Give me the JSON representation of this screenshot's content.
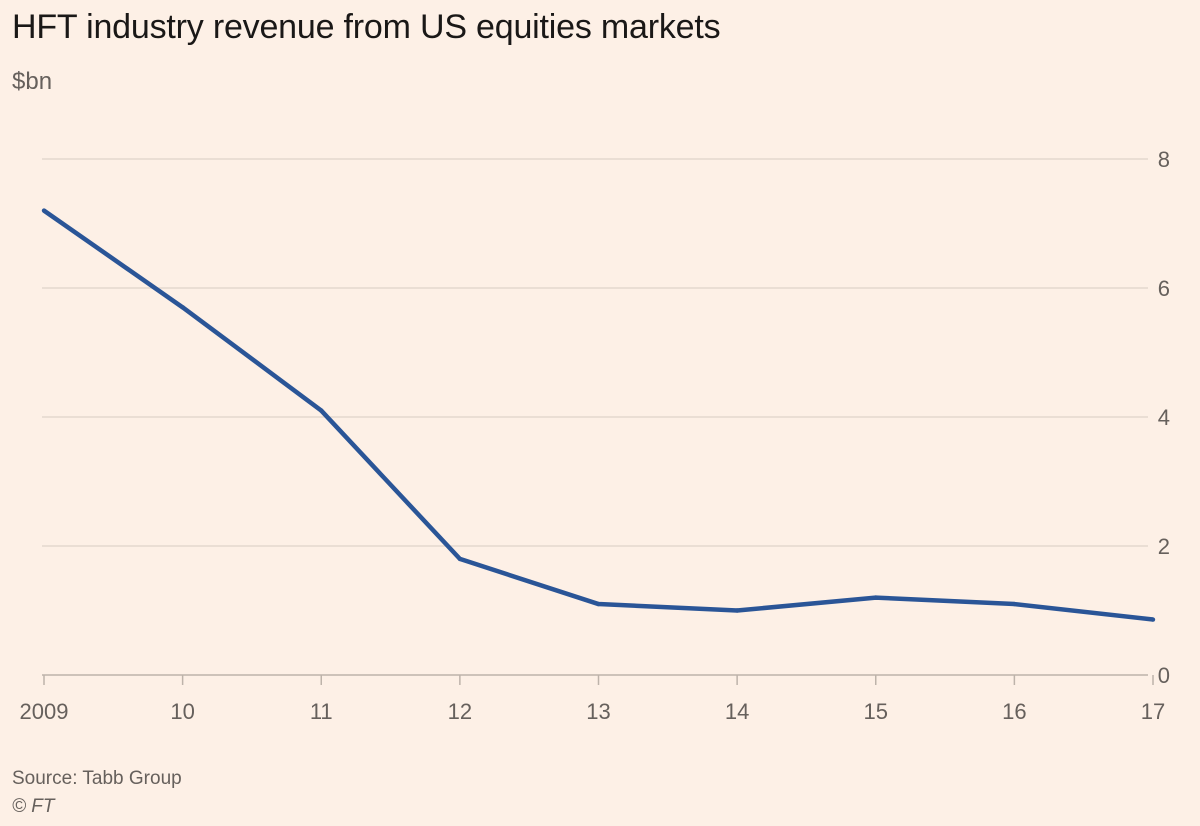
{
  "colors": {
    "background": "#fdf0e6",
    "line": "#2a5597",
    "grid": "#e4d8ce",
    "axis": "#bdb3aa",
    "text": "#66605c"
  },
  "chart_data": {
    "type": "line",
    "title": "HFT industry revenue from US equities markets",
    "subtitle": "$bn",
    "xlabel": "",
    "ylabel": "$bn",
    "categories": [
      "2009",
      "10",
      "11",
      "12",
      "13",
      "14",
      "15",
      "16",
      "17"
    ],
    "series": [
      {
        "name": "HFT industry revenue",
        "values": [
          7.2,
          5.7,
          4.1,
          1.8,
          1.1,
          1.0,
          1.2,
          1.1,
          0.86
        ]
      }
    ],
    "ylim": [
      0,
      8
    ],
    "yticks": [
      0,
      2,
      4,
      6,
      8
    ],
    "grid": true,
    "y_axis_side": "right",
    "source": "Source: Tabb Group",
    "credit": "© FT"
  }
}
